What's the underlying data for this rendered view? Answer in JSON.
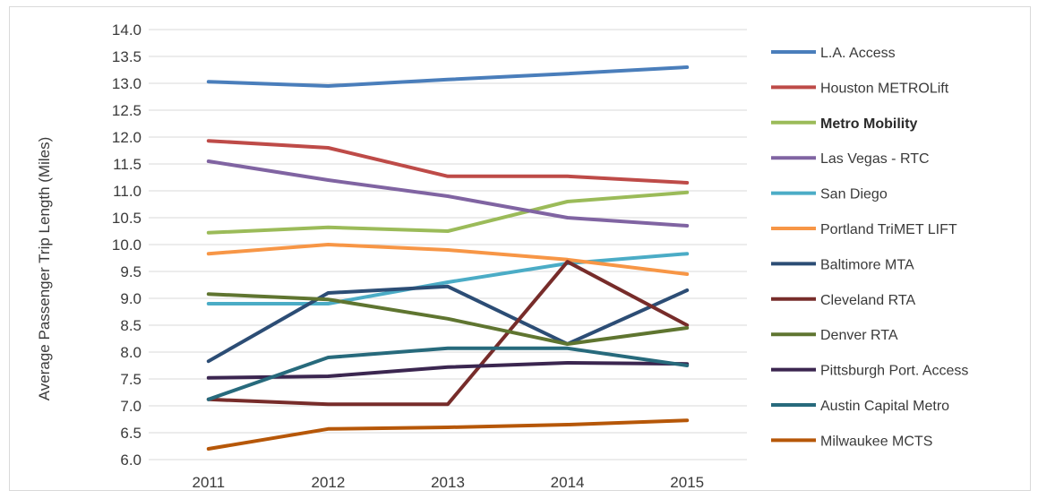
{
  "chart_data": {
    "type": "line",
    "title": "",
    "xlabel": "",
    "ylabel": "Average Passenger Trip Length (Miles)",
    "x": [
      "2011",
      "2012",
      "2013",
      "2014",
      "2015"
    ],
    "ylim": [
      6.0,
      14.0
    ],
    "ytick_step": 0.5,
    "y_ticks": [
      "6.0",
      "6.5",
      "7.0",
      "7.5",
      "8.0",
      "8.5",
      "9.0",
      "9.5",
      "10.0",
      "10.5",
      "11.0",
      "11.5",
      "12.0",
      "12.5",
      "13.0",
      "13.5",
      "14.0"
    ],
    "grid": "horizontal",
    "legend_position": "right",
    "series": [
      {
        "name": "L.A. Access",
        "color": "#4a7ebb",
        "values": [
          13.03,
          12.95,
          13.07,
          13.18,
          13.3
        ],
        "bold": false
      },
      {
        "name": "Houston METROLift",
        "color": "#be4b48",
        "values": [
          11.93,
          11.8,
          11.27,
          11.27,
          11.15
        ],
        "bold": false
      },
      {
        "name": "Metro Mobility",
        "color": "#9bbb59",
        "values": [
          10.22,
          10.32,
          10.25,
          10.8,
          10.97
        ],
        "bold": true
      },
      {
        "name": "Las Vegas - RTC",
        "color": "#8064a2",
        "values": [
          11.55,
          11.2,
          10.9,
          10.5,
          10.35
        ],
        "bold": false
      },
      {
        "name": "San Diego",
        "color": "#4bacc6",
        "values": [
          8.9,
          8.9,
          9.3,
          9.65,
          9.83
        ],
        "bold": false
      },
      {
        "name": "Portland TriMET LIFT",
        "color": "#f79646",
        "values": [
          9.83,
          10.0,
          9.9,
          9.72,
          9.45
        ],
        "bold": false
      },
      {
        "name": "Baltimore MTA",
        "color": "#2c4d75",
        "values": [
          7.83,
          9.1,
          9.22,
          8.15,
          9.15
        ],
        "bold": false
      },
      {
        "name": "Cleveland RTA",
        "color": "#772c2a",
        "values": [
          7.12,
          7.03,
          7.03,
          9.68,
          8.5
        ],
        "bold": false
      },
      {
        "name": "Denver RTA",
        "color": "#5f7530",
        "values": [
          9.08,
          8.98,
          8.62,
          8.15,
          8.45
        ],
        "bold": false
      },
      {
        "name": "Pittsburgh Port. Access",
        "color": "#3b2650",
        "values": [
          7.52,
          7.55,
          7.72,
          7.8,
          7.78
        ],
        "bold": false
      },
      {
        "name": "Austin Capital Metro",
        "color": "#276a7c",
        "values": [
          7.12,
          7.9,
          8.07,
          8.07,
          7.75
        ],
        "bold": false
      },
      {
        "name": "Milwaukee MCTS",
        "color": "#b65708",
        "values": [
          6.2,
          6.57,
          6.6,
          6.65,
          6.73
        ],
        "bold": false
      }
    ]
  }
}
